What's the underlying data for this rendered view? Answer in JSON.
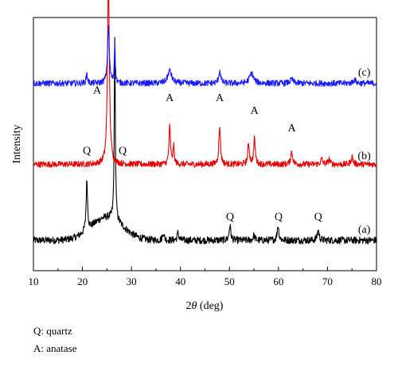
{
  "chart_data": {
    "type": "line",
    "title": "",
    "xlabel_prefix": "2",
    "xlabel_symbol": "θ",
    "xlabel_suffix": " (deg)",
    "ylabel": "Intensity",
    "xlim": [
      10,
      80
    ],
    "x_ticks": [
      10,
      20,
      30,
      40,
      50,
      60,
      70,
      80
    ],
    "grid": false,
    "legend": "none",
    "series": [
      {
        "name": "(a)",
        "color": "#000000",
        "baseline": 0.12,
        "noise": 0.014,
        "hump": {
          "center": 25,
          "width": 3.2,
          "height": 0.09
        },
        "peaks": [
          {
            "x": 20.9,
            "h": 0.2,
            "w": 0.22
          },
          {
            "x": 26.6,
            "h": 0.72,
            "w": 0.16
          },
          {
            "x": 36.5,
            "h": 0.03,
            "w": 0.25
          },
          {
            "x": 39.5,
            "h": 0.03,
            "w": 0.25
          },
          {
            "x": 50.1,
            "h": 0.06,
            "w": 0.25
          },
          {
            "x": 55.0,
            "h": 0.02,
            "w": 0.25
          },
          {
            "x": 59.9,
            "h": 0.06,
            "w": 0.25
          },
          {
            "x": 68.1,
            "h": 0.04,
            "w": 0.28
          }
        ],
        "labels": [
          {
            "text": "Q",
            "x": 20.9,
            "y": 0.46
          },
          {
            "text": "Q",
            "x": 28.2,
            "y": 0.46
          },
          {
            "text": "Q",
            "x": 50.1,
            "y": 0.2
          },
          {
            "text": "Q",
            "x": 60.0,
            "y": 0.2
          },
          {
            "text": "Q",
            "x": 68.1,
            "y": 0.2
          }
        ],
        "tag": {
          "text": "(a)",
          "x": 77.5,
          "y": 0.15
        }
      },
      {
        "name": "(b)",
        "color": "#e60000",
        "baseline": 0.42,
        "noise": 0.012,
        "hump": {
          "center": 25,
          "width": 3,
          "height": 0.0
        },
        "peaks": [
          {
            "x": 25.3,
            "h": 0.74,
            "w": 0.28
          },
          {
            "x": 37.8,
            "h": 0.15,
            "w": 0.22
          },
          {
            "x": 38.6,
            "h": 0.07,
            "w": 0.2
          },
          {
            "x": 48.0,
            "h": 0.15,
            "w": 0.25
          },
          {
            "x": 53.9,
            "h": 0.08,
            "w": 0.25
          },
          {
            "x": 55.1,
            "h": 0.1,
            "w": 0.25
          },
          {
            "x": 62.7,
            "h": 0.05,
            "w": 0.3
          },
          {
            "x": 68.8,
            "h": 0.02,
            "w": 0.3
          },
          {
            "x": 70.3,
            "h": 0.02,
            "w": 0.3
          },
          {
            "x": 75.0,
            "h": 0.03,
            "w": 0.3
          }
        ],
        "labels": [
          {
            "text": "A",
            "x": 23.0,
            "y": 0.7
          },
          {
            "text": "A",
            "x": 37.8,
            "y": 0.67
          },
          {
            "text": "A",
            "x": 48.0,
            "y": 0.67
          },
          {
            "text": "A",
            "x": 55.1,
            "y": 0.62
          },
          {
            "text": "A",
            "x": 62.7,
            "y": 0.55
          }
        ],
        "tag": {
          "text": "(b)",
          "x": 77.5,
          "y": 0.44
        }
      },
      {
        "name": "(c)",
        "color": "#1a1aff",
        "baseline": 0.74,
        "noise": 0.012,
        "hump": {
          "center": 25,
          "width": 3,
          "height": 0.0
        },
        "peaks": [
          {
            "x": 20.9,
            "h": 0.04,
            "w": 0.2
          },
          {
            "x": 25.3,
            "h": 0.22,
            "w": 0.28
          },
          {
            "x": 26.6,
            "h": 0.17,
            "w": 0.14
          },
          {
            "x": 37.8,
            "h": 0.05,
            "w": 0.6
          },
          {
            "x": 48.0,
            "h": 0.05,
            "w": 0.3
          },
          {
            "x": 54.5,
            "h": 0.04,
            "w": 0.6
          },
          {
            "x": 62.7,
            "h": 0.015,
            "w": 0.5
          },
          {
            "x": 75.5,
            "h": 0.015,
            "w": 0.4
          }
        ],
        "labels": [],
        "tag": {
          "text": "(c)",
          "x": 77.5,
          "y": 0.77
        }
      }
    ]
  },
  "notes": [
    "Q: quartz",
    "A: anatase"
  ]
}
